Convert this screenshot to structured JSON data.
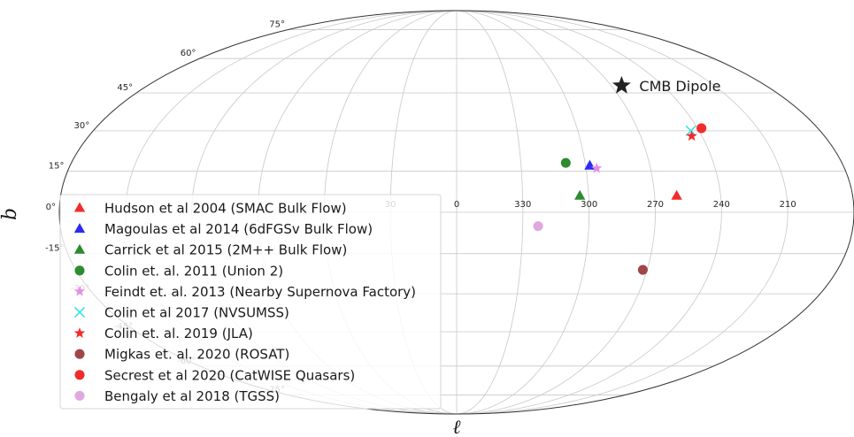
{
  "chart_data": {
    "type": "scatter",
    "projection": "mollweide",
    "xlabel": "ℓ",
    "ylabel": "b",
    "grid": true,
    "legend_placement": "lower-left",
    "lon_tick_labels": [
      "30",
      "0",
      "330",
      "300",
      "270",
      "240",
      "210"
    ],
    "lat_tick_labels": [
      "75°",
      "60°",
      "45°",
      "30°",
      "15°",
      "0°",
      "-15°",
      "-30°",
      "-45°",
      "-60°",
      "-75°"
    ],
    "annotations": [
      {
        "text": "CMB Dipole",
        "l": 264,
        "b": 48,
        "marker": "star",
        "color": "#222222"
      }
    ],
    "series": [
      {
        "name": "Hudson et al 2004 (SMAC Bulk Flow)",
        "marker": "triangle",
        "color": "#f22b2b",
        "points": [
          {
            "l": 260,
            "b": 6
          }
        ]
      },
      {
        "name": "Magoulas et al 2014 (6dFGSv Bulk Flow)",
        "marker": "triangle",
        "color": "#2b2bf2",
        "points": [
          {
            "l": 298,
            "b": 17
          }
        ]
      },
      {
        "name": "Carrick et al 2015 (2M++ Bulk Flow)",
        "marker": "triangle",
        "color": "#2e8b2e",
        "points": [
          {
            "l": 304,
            "b": 6
          }
        ]
      },
      {
        "name": "Colin et. al. 2011 (Union 2)",
        "marker": "circle",
        "color": "#2e8b2e",
        "points": [
          {
            "l": 309,
            "b": 18
          }
        ]
      },
      {
        "name": "Feindt et. al. 2013 (Nearby Supernova Factory)",
        "marker": "star",
        "color": "#e48ee4",
        "points": [
          {
            "l": 295,
            "b": 16
          }
        ]
      },
      {
        "name": "Colin et al 2017 (NVSUMSS)",
        "marker": "x",
        "color": "#39e3e3",
        "points": [
          {
            "l": 244,
            "b": 30
          }
        ]
      },
      {
        "name": "Colin et. al. 2019 (JLA)",
        "marker": "star",
        "color": "#f22b2b",
        "points": [
          {
            "l": 245,
            "b": 28
          }
        ]
      },
      {
        "name": "Migkas et. al. 2020 (ROSAT)",
        "marker": "circle",
        "color": "#a04646",
        "points": [
          {
            "l": 272,
            "b": -21
          }
        ]
      },
      {
        "name": "Secrest et al 2020 (CatWISE Quasars)",
        "marker": "circle",
        "color": "#f22b2b",
        "points": [
          {
            "l": 238,
            "b": 31
          }
        ]
      },
      {
        "name": "Bengaly et al 2018 (TGSS)",
        "marker": "circle",
        "color": "#e0a7e0",
        "points": [
          {
            "l": 323,
            "b": -5
          }
        ]
      }
    ]
  }
}
